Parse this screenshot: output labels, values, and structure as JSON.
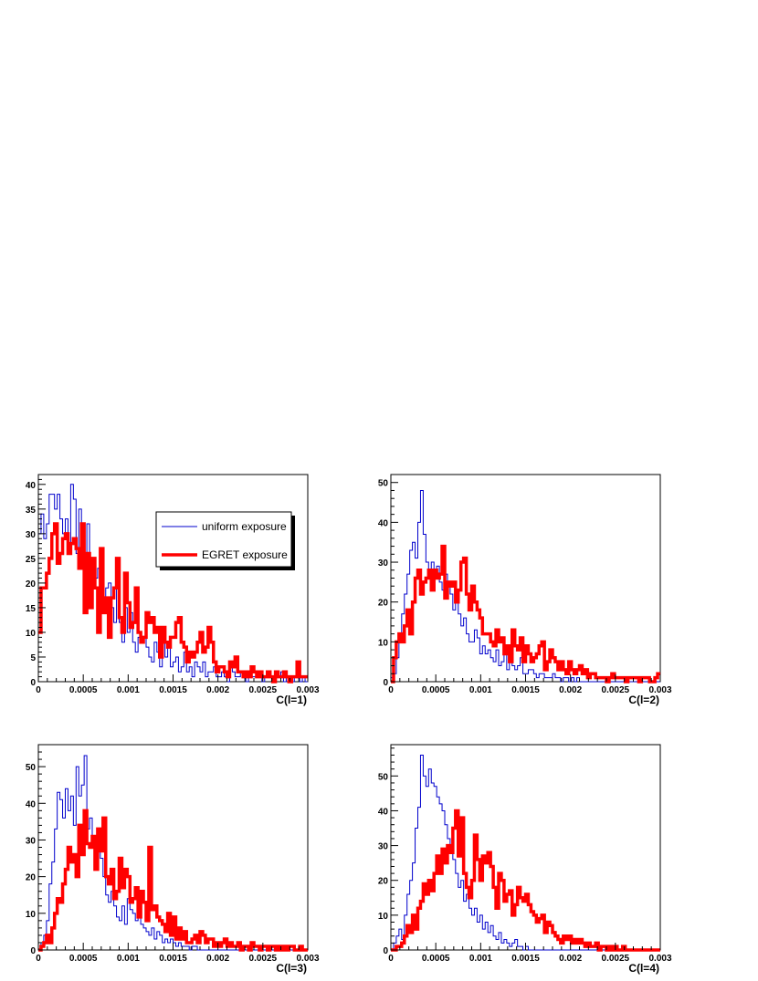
{
  "legend": {
    "entries": [
      {
        "label": "uniform exposure",
        "color": "#0000cc",
        "width": "thin"
      },
      {
        "label": "EGRET exposure",
        "color": "#ff0000",
        "width": "thick"
      }
    ],
    "placement": "upper-right of first panel"
  },
  "chart_data": [
    {
      "type": "histogram",
      "xlabel": "C(l=1)",
      "xlim": [
        0,
        0.003
      ],
      "ylim": [
        0,
        42
      ],
      "xticks": [
        "0",
        "0.0005",
        "0.001",
        "0.0015",
        "0.002",
        "0.0025",
        "0.003"
      ],
      "yticks": [
        "0",
        "5",
        "10",
        "15",
        "20",
        "25",
        "30",
        "35",
        "40"
      ],
      "ytick_values": [
        0,
        5,
        10,
        15,
        20,
        25,
        30,
        35,
        40
      ],
      "bin_width": 3e-05,
      "series": [
        {
          "name": "uniform exposure",
          "color": "#0000cc",
          "values": [
            30,
            34,
            29,
            32,
            38,
            38,
            35,
            38,
            33,
            30,
            33,
            26,
            40,
            37,
            26,
            35,
            29,
            23,
            32,
            22,
            24,
            21,
            23,
            21,
            15,
            19,
            20,
            15,
            12,
            19,
            12,
            8,
            15,
            10,
            14,
            8,
            6,
            9,
            8,
            9,
            7,
            5,
            4,
            8,
            6,
            3,
            8,
            5,
            7,
            3,
            4,
            5,
            2,
            3,
            6,
            2,
            3,
            1,
            4,
            3,
            2,
            4,
            1,
            2,
            2,
            3,
            1,
            1,
            2,
            1,
            0,
            3,
            2,
            1,
            1,
            2,
            1,
            0,
            2,
            1,
            1,
            1,
            2,
            0,
            1,
            1,
            1,
            0,
            1,
            1,
            2,
            0,
            1,
            1,
            0,
            1,
            2,
            0,
            1,
            0
          ]
        },
        {
          "name": "EGRET exposure",
          "color": "#ff0000",
          "values": [
            10,
            19,
            19,
            22,
            25,
            30,
            32,
            24,
            26,
            29,
            30,
            26,
            28,
            29,
            27,
            23,
            32,
            14,
            26,
            15,
            25,
            19,
            10,
            27,
            14,
            17,
            9,
            17,
            19,
            25,
            13,
            10,
            22,
            16,
            11,
            12,
            19,
            10,
            8,
            9,
            14,
            12,
            13,
            10,
            11,
            5,
            11,
            8,
            7,
            9,
            9,
            12,
            13,
            8,
            7,
            4,
            6,
            5,
            6,
            8,
            10,
            6,
            7,
            11,
            8,
            4,
            2,
            3,
            3,
            2,
            1,
            4,
            3,
            5,
            2,
            2,
            1,
            2,
            1,
            3,
            2,
            1,
            2,
            1,
            1,
            2,
            1,
            0,
            2,
            1,
            1,
            2,
            1,
            0,
            1,
            1,
            4,
            1,
            1,
            1
          ]
        }
      ]
    },
    {
      "type": "histogram",
      "xlabel": "C(l=2)",
      "xlim": [
        0,
        0.003
      ],
      "ylim": [
        0,
        52
      ],
      "xticks": [
        "0",
        "0.0005",
        "0.001",
        "0.0015",
        "0.002",
        "0.0025",
        "0.003"
      ],
      "yticks": [
        "0",
        "10",
        "20",
        "30",
        "40",
        "50"
      ],
      "ytick_values": [
        0,
        10,
        20,
        30,
        40,
        50
      ],
      "bin_width": 3e-05,
      "series": [
        {
          "name": "uniform exposure",
          "color": "#0000cc",
          "values": [
            1,
            2,
            6,
            10,
            17,
            22,
            27,
            33,
            35,
            31,
            40,
            48,
            37,
            30,
            27,
            30,
            26,
            29,
            25,
            23,
            27,
            25,
            22,
            18,
            21,
            17,
            14,
            16,
            12,
            10,
            10,
            13,
            11,
            7,
            9,
            7,
            8,
            6,
            5,
            8,
            4,
            5,
            7,
            3,
            5,
            4,
            3,
            4,
            6,
            2,
            2,
            3,
            3,
            2,
            1,
            2,
            2,
            1,
            1,
            1,
            2,
            1,
            1,
            0,
            1,
            1,
            0,
            1,
            0,
            1,
            0,
            0,
            0,
            0,
            0,
            0,
            0,
            0,
            0,
            0,
            0,
            0,
            0,
            0,
            0,
            0,
            0,
            0,
            0,
            0,
            0,
            0,
            0,
            0,
            0,
            0,
            0,
            0,
            0,
            0
          ]
        },
        {
          "name": "EGRET exposure",
          "color": "#ff0000",
          "values": [
            0,
            6,
            10,
            12,
            10,
            14,
            18,
            12,
            20,
            26,
            28,
            22,
            25,
            26,
            28,
            23,
            28,
            26,
            27,
            34,
            21,
            25,
            24,
            25,
            20,
            23,
            30,
            31,
            22,
            18,
            24,
            20,
            18,
            16,
            12,
            12,
            12,
            10,
            9,
            13,
            10,
            11,
            7,
            9,
            5,
            13,
            9,
            8,
            11,
            5,
            9,
            7,
            5,
            6,
            7,
            9,
            10,
            3,
            5,
            8,
            6,
            5,
            3,
            5,
            3,
            2,
            5,
            3,
            2,
            3,
            4,
            2,
            3,
            1,
            2,
            2,
            1,
            1,
            1,
            1,
            0,
            1,
            2,
            1,
            1,
            1,
            1,
            0,
            1,
            1,
            1,
            1,
            0,
            1,
            1,
            1,
            0,
            0,
            1,
            2
          ]
        }
      ]
    },
    {
      "type": "histogram",
      "xlabel": "C(l=3)",
      "xlim": [
        0,
        0.003
      ],
      "ylim": [
        0,
        56
      ],
      "xticks": [
        "0",
        "0.0005",
        "0.001",
        "0.0015",
        "0.002",
        "0.0025",
        "0.003"
      ],
      "yticks": [
        "0",
        "10",
        "20",
        "30",
        "40",
        "50"
      ],
      "ytick_values": [
        0,
        10,
        20,
        30,
        40,
        50
      ],
      "bin_width": 3e-05,
      "series": [
        {
          "name": "uniform exposure",
          "color": "#0000cc",
          "values": [
            0,
            2,
            4,
            8,
            18,
            24,
            33,
            43,
            41,
            36,
            44,
            38,
            42,
            34,
            50,
            42,
            45,
            53,
            33,
            36,
            30,
            27,
            28,
            25,
            20,
            15,
            13,
            16,
            12,
            9,
            8,
            12,
            7,
            14,
            11,
            10,
            8,
            9,
            7,
            6,
            5,
            4,
            6,
            3,
            5,
            4,
            2,
            3,
            2,
            3,
            2,
            1,
            2,
            1,
            1,
            1,
            0,
            1,
            1,
            0,
            0,
            0,
            0,
            0,
            0,
            0,
            0,
            0,
            0,
            0,
            0,
            0,
            0,
            0,
            0,
            0,
            0,
            0,
            0,
            0,
            0,
            0,
            0,
            0,
            0,
            0,
            0,
            0,
            0,
            0,
            0,
            0,
            0,
            0,
            0,
            0,
            0,
            0,
            0,
            0
          ]
        },
        {
          "name": "EGRET exposure",
          "color": "#ff0000",
          "values": [
            0,
            1,
            2,
            4,
            2,
            6,
            10,
            14,
            13,
            18,
            22,
            28,
            24,
            26,
            20,
            34,
            26,
            38,
            29,
            28,
            31,
            22,
            33,
            27,
            36,
            20,
            18,
            22,
            14,
            16,
            25,
            17,
            22,
            20,
            13,
            14,
            17,
            9,
            16,
            13,
            8,
            28,
            11,
            12,
            9,
            8,
            7,
            5,
            10,
            4,
            9,
            3,
            6,
            3,
            5,
            2,
            2,
            3,
            4,
            2,
            5,
            4,
            2,
            3,
            3,
            1,
            2,
            1,
            2,
            3,
            1,
            2,
            1,
            1,
            2,
            0,
            1,
            1,
            0,
            2,
            1,
            1,
            0,
            1,
            1,
            0,
            1,
            1,
            0,
            1,
            0,
            1,
            0,
            1,
            1,
            0,
            0,
            1,
            0,
            0
          ]
        }
      ]
    },
    {
      "type": "histogram",
      "xlabel": "C(l=4)",
      "xlim": [
        0,
        0.003
      ],
      "ylim": [
        0,
        59
      ],
      "xticks": [
        "0",
        "0.0005",
        "0.001",
        "0.0015",
        "0.002",
        "0.0025",
        "0.003"
      ],
      "yticks": [
        "0",
        "10",
        "20",
        "30",
        "40",
        "50"
      ],
      "ytick_values": [
        0,
        10,
        20,
        30,
        40,
        50
      ],
      "bin_width": 3e-05,
      "series": [
        {
          "name": "uniform exposure",
          "color": "#0000cc",
          "values": [
            0,
            2,
            4,
            6,
            3,
            10,
            16,
            20,
            25,
            35,
            41,
            56,
            50,
            47,
            52,
            48,
            47,
            44,
            42,
            40,
            36,
            32,
            30,
            26,
            22,
            18,
            20,
            14,
            16,
            12,
            10,
            12,
            8,
            10,
            6,
            8,
            5,
            7,
            4,
            3,
            5,
            2,
            3,
            2,
            1,
            2,
            3,
            1,
            1,
            0,
            1,
            0,
            0,
            0,
            0,
            0,
            0,
            0,
            0,
            0,
            0,
            0,
            0,
            0,
            0,
            0,
            0,
            0,
            0,
            0,
            0,
            0,
            0,
            0,
            0,
            0,
            0,
            0,
            0,
            0,
            0,
            0,
            0,
            0,
            0,
            0,
            0,
            0,
            0,
            0,
            0,
            0,
            0,
            0,
            0,
            0,
            0,
            0,
            0,
            0
          ]
        },
        {
          "name": "EGRET exposure",
          "color": "#ff0000",
          "values": [
            0,
            0,
            1,
            1,
            2,
            4,
            7,
            5,
            10,
            6,
            12,
            14,
            19,
            16,
            20,
            17,
            22,
            27,
            22,
            29,
            25,
            30,
            28,
            35,
            40,
            27,
            38,
            22,
            18,
            15,
            20,
            33,
            26,
            20,
            27,
            25,
            28,
            24,
            18,
            12,
            22,
            20,
            14,
            16,
            17,
            10,
            13,
            18,
            15,
            14,
            16,
            13,
            11,
            10,
            8,
            9,
            10,
            5,
            8,
            7,
            5,
            4,
            3,
            2,
            4,
            3,
            4,
            2,
            3,
            2,
            3,
            2,
            1,
            2,
            1,
            1,
            2,
            0,
            1,
            1,
            0,
            1,
            0,
            1,
            0,
            0,
            1,
            0,
            0,
            0,
            0,
            0,
            0,
            0,
            0,
            0,
            0,
            0,
            0,
            0
          ]
        }
      ]
    }
  ]
}
